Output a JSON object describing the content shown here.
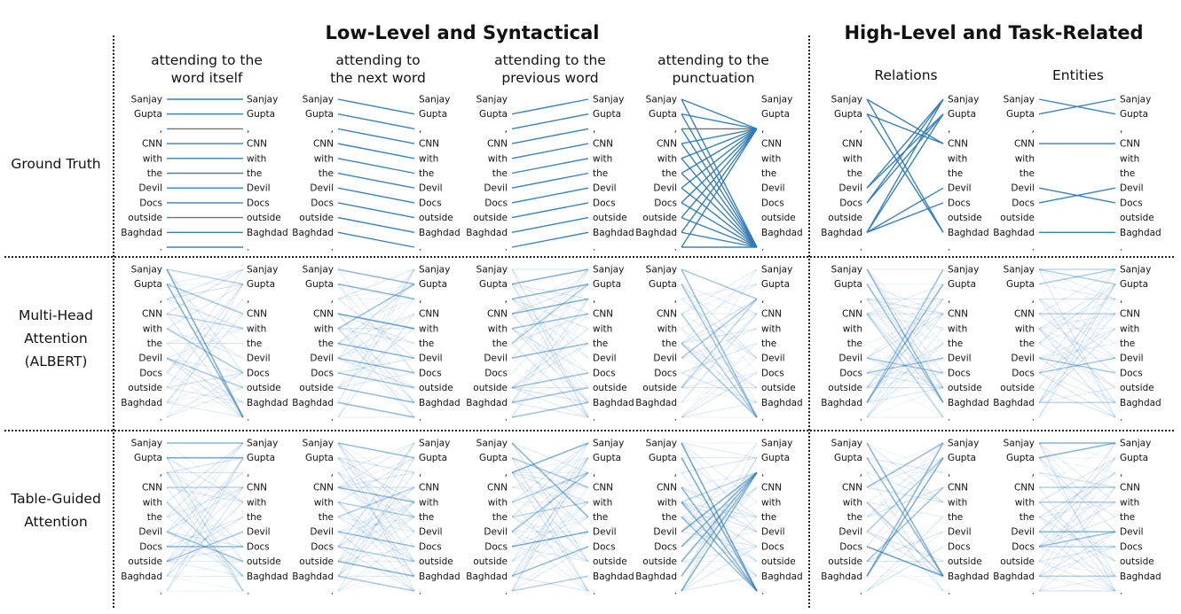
{
  "section_titles": {
    "low_level": "Low-Level and Syntactical",
    "high_level": "High-Level and Task-Related"
  },
  "column_titles": [
    [
      "attending to the",
      "word itself"
    ],
    [
      "attending to",
      "the next word"
    ],
    [
      "attending to the",
      "previous word"
    ],
    [
      "attending to the",
      "punctuation"
    ],
    [
      "Relations"
    ],
    [
      "Entities"
    ]
  ],
  "row_labels": [
    [
      "Ground Truth"
    ],
    [
      "Multi-Head",
      "Attention",
      "(ALBERT)"
    ],
    [
      "Table-Guided",
      "Attention"
    ]
  ],
  "tokens": [
    "Sanjay",
    "Gupta",
    ",",
    "CNN",
    "with",
    "the",
    "Devil",
    "Docs",
    "outside",
    "Baghdad",
    "."
  ],
  "colors": {
    "line": "#2f7ab8",
    "divider": "#222222"
  }
}
